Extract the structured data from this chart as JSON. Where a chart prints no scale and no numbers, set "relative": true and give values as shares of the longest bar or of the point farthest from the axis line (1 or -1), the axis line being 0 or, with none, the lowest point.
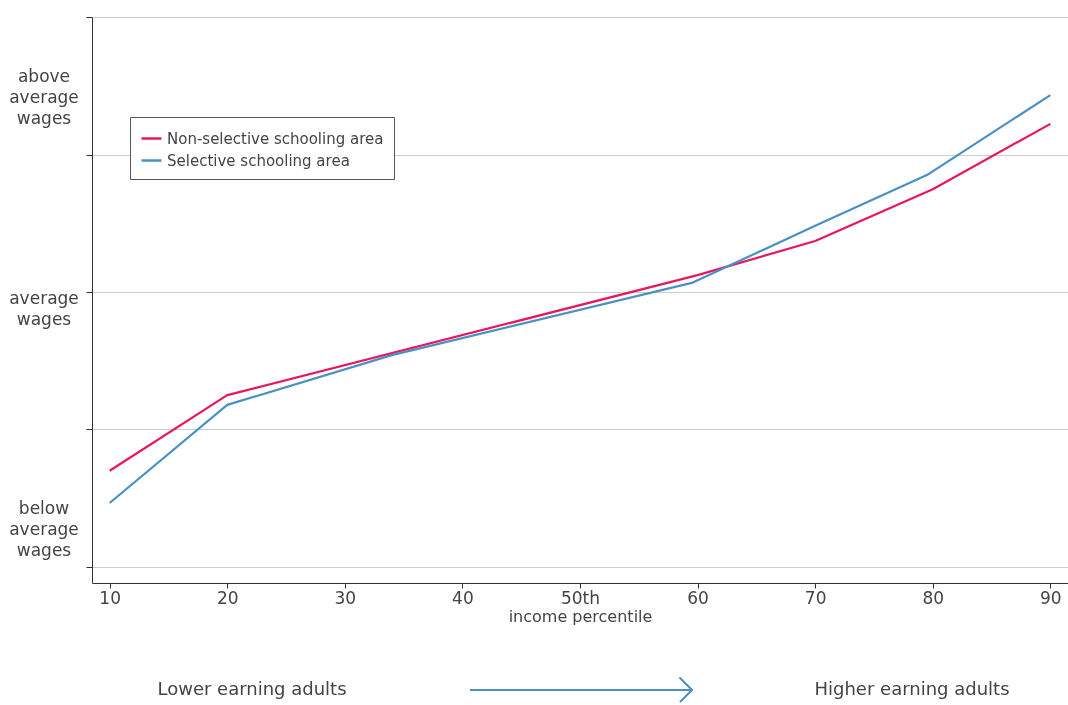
{
  "chart_data": {
    "type": "line",
    "relative": true,
    "xlabel": "income percentile",
    "xlim": [
      8.5,
      91.5
    ],
    "xticks": [
      10,
      20,
      30,
      40,
      {
        "value": 50,
        "label": "50th"
      },
      60,
      70,
      80,
      90
    ],
    "series": [
      {
        "name": "Non-selective schooling area",
        "color": "#e8175d",
        "x": [
          10,
          20,
          60,
          70,
          80,
          90
        ],
        "values": [
          0.23,
          0.385,
          0.631,
          0.701,
          0.807,
          0.941
        ]
      },
      {
        "name": "Selective schooling area",
        "color": "#4a90c4",
        "x": [
          10,
          20,
          34,
          59.5,
          70,
          79.5,
          90
        ],
        "values": [
          0.164,
          0.365,
          0.467,
          0.615,
          0.732,
          0.836,
          1.0
        ]
      }
    ],
    "annotations": [
      "above average wages",
      "average wages",
      "below average wages",
      "Lower earning adults",
      "Higher earning adults"
    ],
    "grid": "y",
    "legend": "top left",
    "line_style": "solid",
    "marker": "none"
  }
}
